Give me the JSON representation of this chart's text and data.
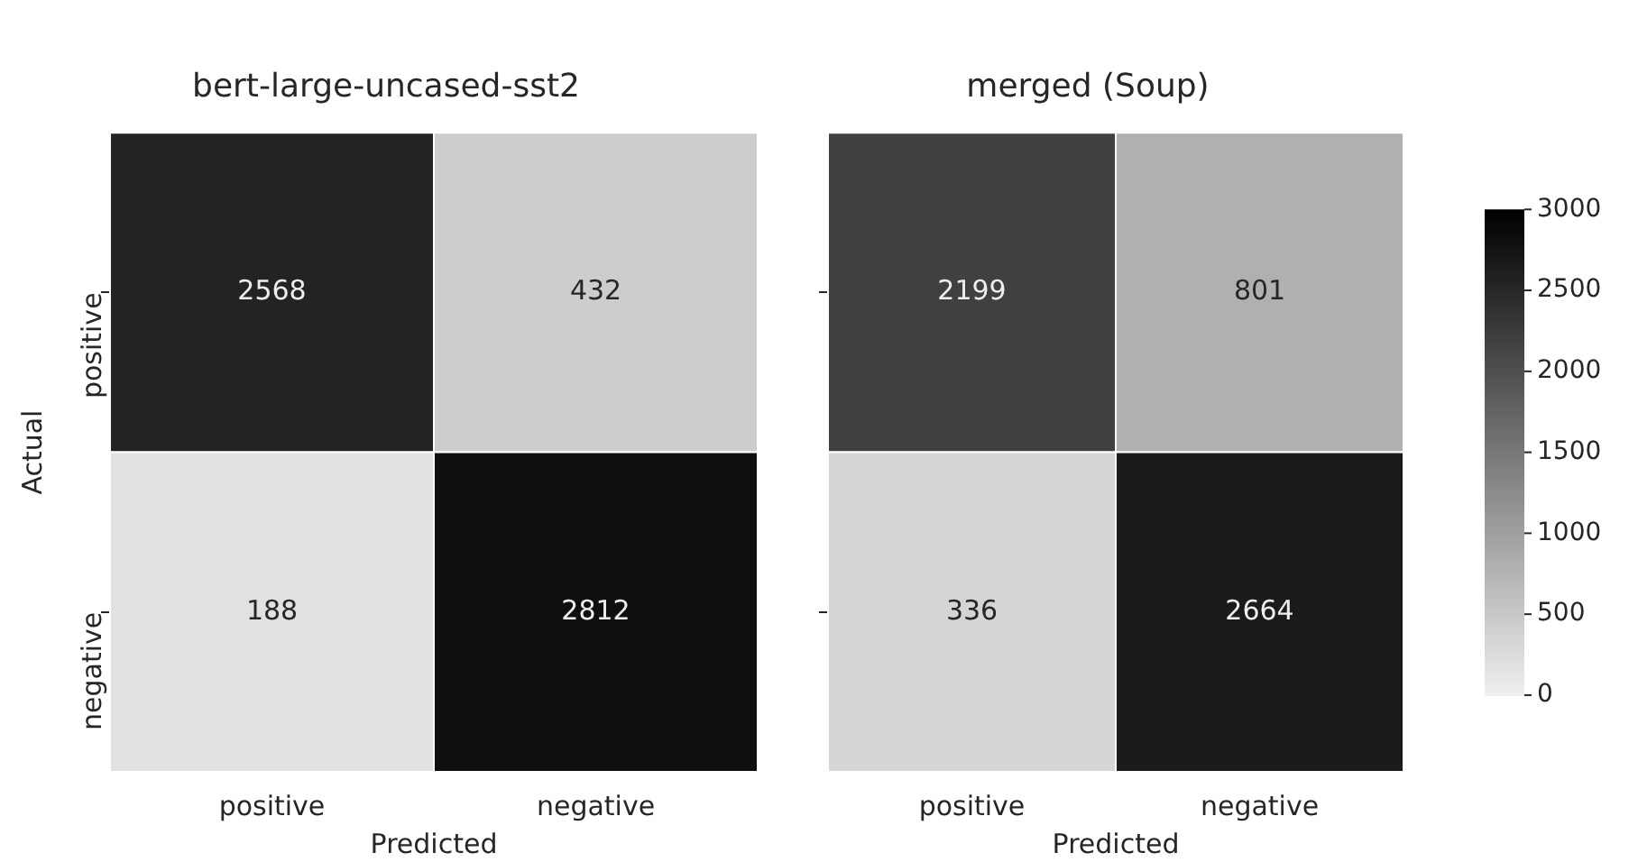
{
  "chart_data": [
    {
      "type": "heatmap",
      "title": "bert-large-uncased-sst2",
      "xlabel": "Predicted",
      "ylabel": "Actual",
      "categories": [
        "positive",
        "negative"
      ],
      "y_categories": [
        "positive",
        "negative"
      ],
      "cells": [
        [
          2568,
          432
        ],
        [
          188,
          2812
        ]
      ],
      "data_labels": true
    },
    {
      "type": "heatmap",
      "title": "merged (Soup)",
      "xlabel": "Predicted",
      "categories": [
        "positive",
        "negative"
      ],
      "y_categories": [
        null,
        null
      ],
      "cells": [
        [
          2199,
          801
        ],
        [
          336,
          2664
        ]
      ],
      "data_labels": true,
      "clim": [
        0,
        3000
      ],
      "cticks": [
        0,
        500,
        1000,
        1500,
        2000,
        2500,
        3000
      ]
    }
  ]
}
